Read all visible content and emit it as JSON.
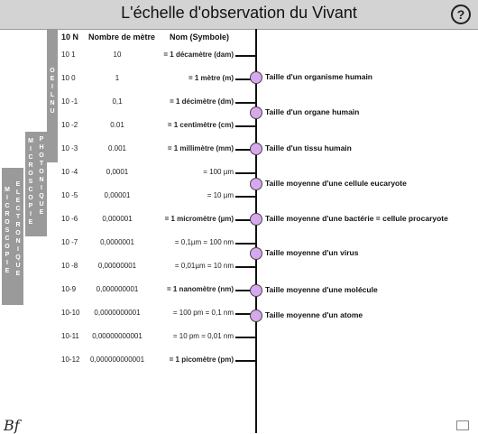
{
  "window": {
    "title": "L'échelle d'observation du Vivant",
    "help_symbol": "?"
  },
  "table": {
    "headers": {
      "exp": "10 N",
      "meter": "Nombre de mètre",
      "name": "Nom (Symbole)"
    },
    "rows": [
      {
        "exp": "10 1",
        "meter": "10",
        "name": "= 1 décamètre (dam)",
        "bold": true
      },
      {
        "exp": "10 0",
        "meter": "1",
        "name": "= 1 mètre (m)",
        "bold": true
      },
      {
        "exp": "10 -1",
        "meter": "0,1",
        "name": "= 1 décimètre (dm)",
        "bold": true
      },
      {
        "exp": "10 -2",
        "meter": "0.01",
        "name": "= 1 centimètre (cm)",
        "bold": true
      },
      {
        "exp": "10 -3",
        "meter": "0.001",
        "name": "= 1 millimètre (mm)",
        "bold": true
      },
      {
        "exp": "10 -4",
        "meter": "0,0001",
        "name": "= 100 µm",
        "bold": false
      },
      {
        "exp": "10 -5",
        "meter": "0,00001",
        "name": "= 10 µm",
        "bold": false
      },
      {
        "exp": "10 -6",
        "meter": "0,000001",
        "name": "= 1 micromètre (µm)",
        "bold": true
      },
      {
        "exp": "10 -7",
        "meter": "0,0000001",
        "name": "= 0,1µm = 100 nm",
        "bold": false
      },
      {
        "exp": "10 -8",
        "meter": "0,00000001",
        "name": "= 0,01µm = 10 nm",
        "bold": false
      },
      {
        "exp": "10-9",
        "meter": "0,000000001",
        "name": "= 1 nanomètre (nm)",
        "bold": true
      },
      {
        "exp": "10-10",
        "meter": "0,0000000001",
        "name": "= 100 pm = 0,1 nm",
        "bold": false
      },
      {
        "exp": "10-11",
        "meter": "0,00000000001",
        "name": "= 10 pm = 0,01 nm",
        "bold": false
      },
      {
        "exp": "10-12",
        "meter": "0,000000000001",
        "name": "= 1 picomètre (pm)",
        "bold": true
      }
    ]
  },
  "bands": {
    "oeil_nu": "OEIL NU",
    "photonique": "PHOTONIQUE",
    "microscopie_1": "MICROSCOPIE",
    "electronique": "ELECTRONIQUE",
    "microscopie_2": "MICROSCOPIE"
  },
  "markers": [
    {
      "label": "Taille d'un organisme humain"
    },
    {
      "label": "Taille d'un organe humain"
    },
    {
      "label": "Taille d'un tissu humain"
    },
    {
      "label": "Taille moyenne d'une cellule eucaryote"
    },
    {
      "label": "Taille moyenne d'une bactérie = cellule procaryote"
    },
    {
      "label": "Taille moyenne d'un virus"
    },
    {
      "label": "Taille moyenne d'une molécule"
    },
    {
      "label": "Taille moyenne d'un atome"
    }
  ],
  "footer": {
    "signature": "Bf"
  },
  "colors": {
    "marker": "#d7a8ee",
    "band": "#9a9a9a",
    "titlebar": "#d3d3d3"
  }
}
